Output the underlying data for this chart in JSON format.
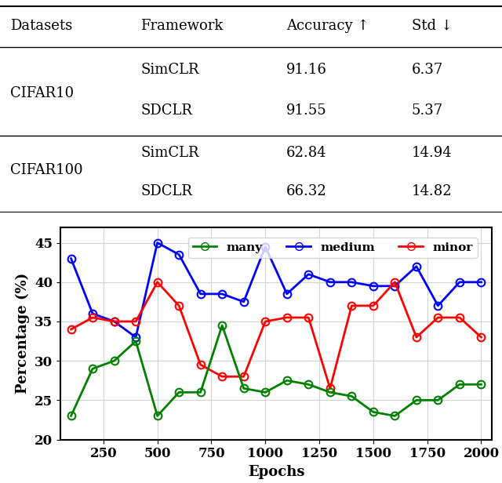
{
  "table": {
    "headers": [
      "Datasets",
      "Framework",
      "Accuracy ↑",
      "Std ↓"
    ],
    "rows": [
      [
        "CIFAR10",
        "SimCLR",
        "91.16",
        "6.37"
      ],
      [
        "CIFAR10",
        "SDCLR",
        "91.55",
        "5.37"
      ],
      [
        "CIFAR100",
        "SimCLR",
        "62.84",
        "14.94"
      ],
      [
        "CIFAR100",
        "SDCLR",
        "66.32",
        "14.82"
      ]
    ]
  },
  "plot": {
    "epochs": [
      100,
      200,
      300,
      400,
      500,
      600,
      700,
      800,
      900,
      1000,
      1100,
      1200,
      1300,
      1400,
      1500,
      1600,
      1700,
      1800,
      1900,
      2000
    ],
    "many": [
      23.0,
      29.0,
      30.0,
      32.5,
      23.0,
      26.0,
      26.0,
      34.5,
      26.5,
      26.0,
      27.5,
      27.0,
      26.0,
      25.5,
      23.5,
      23.0,
      25.0,
      25.0,
      27.0,
      27.0
    ],
    "medium": [
      43.0,
      36.0,
      35.0,
      33.0,
      45.0,
      43.5,
      38.5,
      38.5,
      37.5,
      44.5,
      38.5,
      41.0,
      40.0,
      40.0,
      39.5,
      39.5,
      42.0,
      37.0,
      40.0,
      40.0
    ],
    "minor": [
      34.0,
      35.5,
      35.0,
      35.0,
      40.0,
      37.0,
      29.5,
      28.0,
      28.0,
      35.0,
      35.5,
      35.5,
      26.5,
      37.0,
      37.0,
      40.0,
      33.0,
      35.5,
      35.5,
      33.0
    ],
    "many_color": "#008000",
    "medium_color": "#0000FF",
    "minor_color": "#FF0000",
    "xlabel": "Epochs",
    "ylabel": "Percentage (%)",
    "ylim": [
      20,
      47
    ],
    "yticks": [
      20,
      25,
      30,
      35,
      40,
      45
    ],
    "xticks": [
      250,
      500,
      750,
      1000,
      1250,
      1500,
      1750,
      2000
    ]
  }
}
